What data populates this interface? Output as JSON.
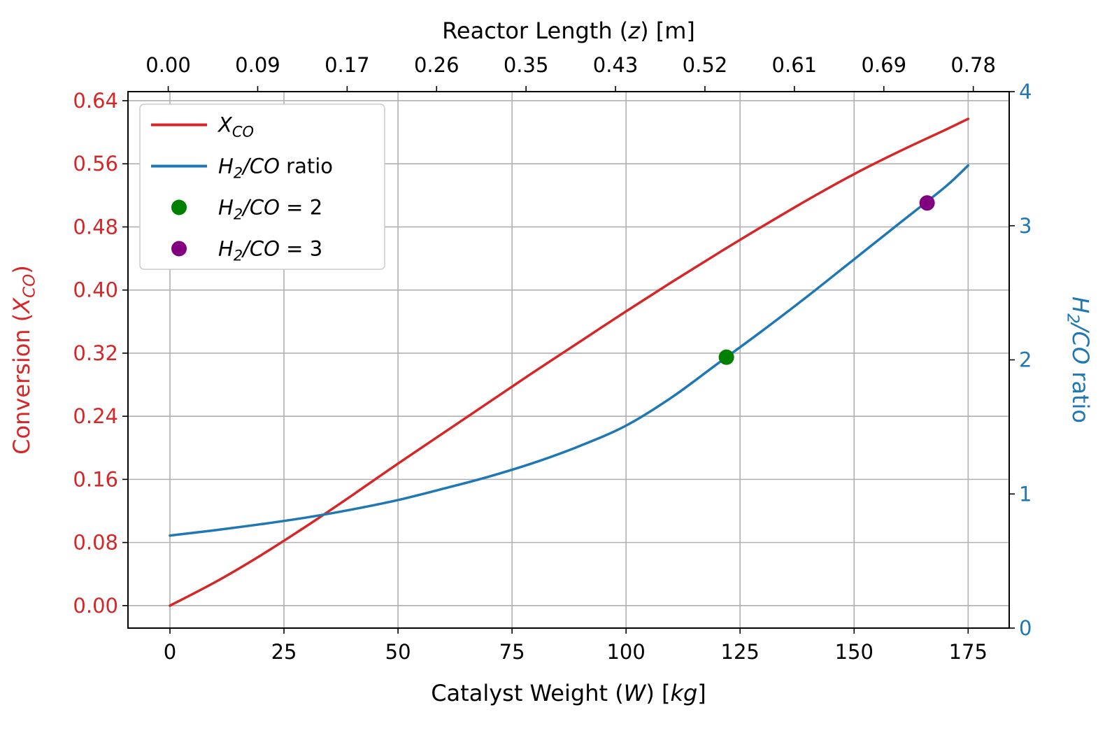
{
  "chart_data": {
    "type": "line",
    "title": "",
    "axes": {
      "top": {
        "label_parts": [
          {
            "t": "Reactor Length ("
          },
          {
            "t": "z",
            "i": true
          },
          {
            "t": ") [m]"
          }
        ],
        "lim": [
          -0.039,
          0.8148
        ],
        "color": "#000000",
        "ticks": [
          {
            "v": 0.0,
            "l": "0.00"
          },
          {
            "v": 0.086667,
            "l": "0.09"
          },
          {
            "v": 0.173333,
            "l": "0.17"
          },
          {
            "v": 0.26,
            "l": "0.26"
          },
          {
            "v": 0.346667,
            "l": "0.35"
          },
          {
            "v": 0.433333,
            "l": "0.43"
          },
          {
            "v": 0.52,
            "l": "0.52"
          },
          {
            "v": 0.606667,
            "l": "0.61"
          },
          {
            "v": 0.693333,
            "l": "0.69"
          },
          {
            "v": 0.78,
            "l": "0.78"
          }
        ]
      },
      "bottom": {
        "label_parts": [
          {
            "t": "Catalyst Weight ("
          },
          {
            "t": "W",
            "i": true
          },
          {
            "t": ") ["
          },
          {
            "t": "kg",
            "i": true
          },
          {
            "t": "]"
          }
        ],
        "lim": [
          -9.2,
          184.0
        ],
        "color": "#000000",
        "ticks": [
          {
            "v": 0,
            "l": "0"
          },
          {
            "v": 25,
            "l": "25"
          },
          {
            "v": 50,
            "l": "50"
          },
          {
            "v": 75,
            "l": "75"
          },
          {
            "v": 100,
            "l": "100"
          },
          {
            "v": 125,
            "l": "125"
          },
          {
            "v": 150,
            "l": "150"
          },
          {
            "v": 175,
            "l": "175"
          }
        ]
      },
      "left": {
        "label_parts": [
          {
            "t": "Conversion ("
          },
          {
            "t": "X",
            "i": true
          },
          {
            "t": "CO",
            "i": true,
            "sub": true
          },
          {
            "t": ")"
          }
        ],
        "lim": [
          -0.0285,
          0.6515
        ],
        "color": "#d62728",
        "ticks": [
          {
            "v": 0.0,
            "l": "0.00"
          },
          {
            "v": 0.08,
            "l": "0.08"
          },
          {
            "v": 0.16,
            "l": "0.16"
          },
          {
            "v": 0.24,
            "l": "0.24"
          },
          {
            "v": 0.32,
            "l": "0.32"
          },
          {
            "v": 0.4,
            "l": "0.40"
          },
          {
            "v": 0.48,
            "l": "0.48"
          },
          {
            "v": 0.56,
            "l": "0.56"
          },
          {
            "v": 0.64,
            "l": "0.64"
          }
        ]
      },
      "right": {
        "label_parts": [
          {
            "t": "H",
            "i": true
          },
          {
            "t": "2",
            "i": true,
            "sub": true
          },
          {
            "t": "/",
            "i": true
          },
          {
            "t": "CO",
            "i": true
          },
          {
            "t": " ratio"
          }
        ],
        "lim": [
          0,
          4
        ],
        "color": "#1f77b4",
        "ticks": [
          {
            "v": 0,
            "l": "0"
          },
          {
            "v": 1,
            "l": "1"
          },
          {
            "v": 2,
            "l": "2"
          },
          {
            "v": 3,
            "l": "3"
          },
          {
            "v": 4,
            "l": "4"
          }
        ]
      }
    },
    "grid": {
      "show": true,
      "color": "#b0b0b0"
    },
    "series": [
      {
        "name": "X_CO",
        "axis": "left",
        "color": "#d62728",
        "width": 3.5,
        "x": [
          0,
          10,
          20,
          30,
          40,
          50,
          60,
          70,
          80,
          90,
          100,
          110,
          120,
          130,
          140,
          150,
          160,
          170,
          175
        ],
        "y": [
          0.0,
          0.03,
          0.064,
          0.101,
          0.14,
          0.18,
          0.219,
          0.258,
          0.297,
          0.335,
          0.373,
          0.41,
          0.446,
          0.481,
          0.515,
          0.547,
          0.576,
          0.603,
          0.617
        ]
      },
      {
        "name": "H2/CO ratio",
        "axis": "right",
        "color": "#1f77b4",
        "width": 3.5,
        "x": [
          0,
          10,
          20,
          30,
          40,
          50,
          60,
          70,
          80,
          90,
          100,
          110,
          120,
          130,
          140,
          150,
          160,
          170,
          175
        ],
        "y": [
          0.69,
          0.73,
          0.775,
          0.825,
          0.885,
          0.955,
          1.04,
          1.13,
          1.235,
          1.36,
          1.51,
          1.72,
          1.97,
          2.22,
          2.48,
          2.75,
          3.02,
          3.29,
          3.45
        ]
      }
    ],
    "markers": [
      {
        "name": "H2/CO = 2",
        "axis": "right",
        "color": "#008000",
        "x": 122,
        "y": 2.02,
        "r": 11
      },
      {
        "name": "H2/CO = 3",
        "axis": "right",
        "color": "#800080",
        "x": 166,
        "y": 3.17,
        "r": 11
      }
    ],
    "legend": {
      "position": "upper-left",
      "entries": [
        {
          "swatch": "line",
          "color": "#d62728",
          "label_parts": [
            {
              "t": "X",
              "i": true
            },
            {
              "t": "CO",
              "i": true,
              "sub": true
            }
          ]
        },
        {
          "swatch": "line",
          "color": "#1f77b4",
          "label_parts": [
            {
              "t": "H",
              "i": true
            },
            {
              "t": "2",
              "i": true,
              "sub": true
            },
            {
              "t": "/",
              "i": true
            },
            {
              "t": "CO",
              "i": true
            },
            {
              "t": " ratio"
            }
          ]
        },
        {
          "swatch": "dot",
          "color": "#008000",
          "label_parts": [
            {
              "t": "H",
              "i": true
            },
            {
              "t": "2",
              "i": true,
              "sub": true
            },
            {
              "t": "/",
              "i": true
            },
            {
              "t": "CO",
              "i": true
            },
            {
              "t": " = 2"
            }
          ]
        },
        {
          "swatch": "dot",
          "color": "#800080",
          "label_parts": [
            {
              "t": "H",
              "i": true
            },
            {
              "t": "2",
              "i": true,
              "sub": true
            },
            {
              "t": "/",
              "i": true
            },
            {
              "t": "CO",
              "i": true
            },
            {
              "t": " = 3"
            }
          ]
        }
      ]
    }
  }
}
